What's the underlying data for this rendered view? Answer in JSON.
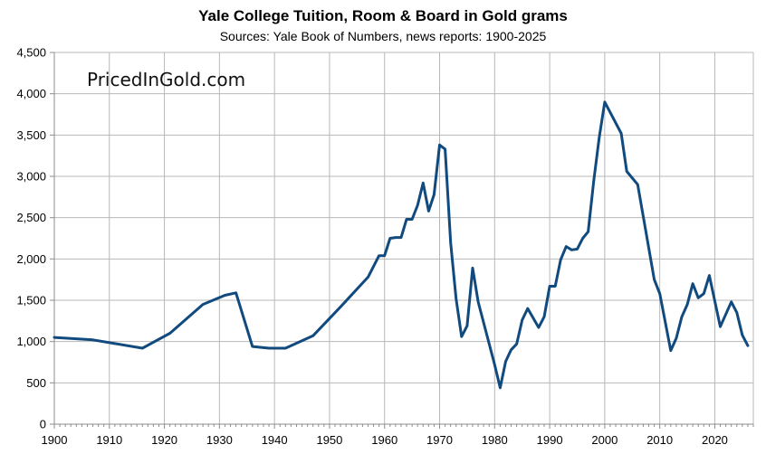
{
  "chart_data": {
    "type": "line",
    "title": "Yale College Tuition, Room & Board in Gold grams",
    "subtitle": "Sources: Yale Book of Numbers, news reports: 1900-2025",
    "watermark": "PricedInGold.com",
    "xlabel": "",
    "ylabel": "",
    "xlim": [
      1900,
      2027
    ],
    "ylim": [
      0,
      4500
    ],
    "x_ticks": [
      1900,
      1910,
      1920,
      1930,
      1940,
      1950,
      1960,
      1970,
      1980,
      1990,
      2000,
      2010,
      2020
    ],
    "x_tick_labels": [
      "1900",
      "1910",
      "1920",
      "1930",
      "1940",
      "1950",
      "1960",
      "1970",
      "1980",
      "1990",
      "2000",
      "2010",
      "2020"
    ],
    "y_ticks": [
      0,
      500,
      1000,
      1500,
      2000,
      2500,
      3000,
      3500,
      4000,
      4500
    ],
    "y_tick_labels": [
      "0",
      "500",
      "1,000",
      "1,500",
      "2,000",
      "2,500",
      "3,000",
      "3,500",
      "4,000",
      "4,500"
    ],
    "grid": true,
    "legend": "none",
    "series": [
      {
        "name": "Tuition, Room & Board (gold grams)",
        "color": "#114a7e",
        "x": [
          1900,
          1907,
          1916,
          1921,
          1927,
          1931,
          1933,
          1936,
          1939,
          1942,
          1947,
          1952,
          1957,
          1959,
          1960,
          1961,
          1962,
          1963,
          1964,
          1965,
          1966,
          1967,
          1968,
          1969,
          1970,
          1971,
          1972,
          1973,
          1974,
          1975,
          1976,
          1977,
          1980,
          1981,
          1982,
          1983,
          1984,
          1985,
          1986,
          1988,
          1989,
          1990,
          1991,
          1992,
          1993,
          1994,
          1995,
          1996,
          1997,
          1998,
          1999,
          2000,
          2003,
          2004,
          2006,
          2009,
          2010,
          2012,
          2013,
          2014,
          2015,
          2016,
          2017,
          2018,
          2019,
          2021,
          2023,
          2024,
          2025,
          2026
        ],
        "y": [
          1050,
          1020,
          920,
          1100,
          1450,
          1560,
          1590,
          940,
          920,
          920,
          1070,
          1420,
          1780,
          2040,
          2040,
          2250,
          2260,
          2260,
          2480,
          2480,
          2650,
          2920,
          2580,
          2780,
          3380,
          3330,
          2200,
          1520,
          1060,
          1190,
          1890,
          1480,
          720,
          440,
          760,
          900,
          970,
          1260,
          1400,
          1170,
          1300,
          1670,
          1670,
          1990,
          2150,
          2110,
          2120,
          2250,
          2330,
          2940,
          3470,
          3900,
          3520,
          3060,
          2900,
          1750,
          1580,
          890,
          1040,
          1300,
          1450,
          1700,
          1530,
          1580,
          1800,
          1180,
          1480,
          1350,
          1080,
          950
        ]
      }
    ]
  }
}
